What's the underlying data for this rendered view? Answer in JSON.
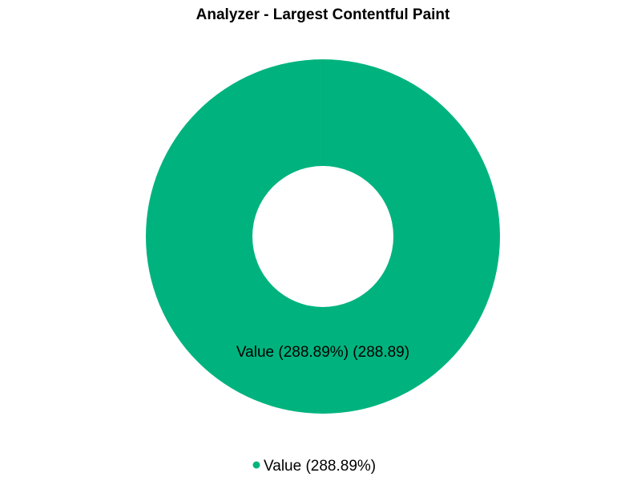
{
  "chart_data": {
    "type": "pie",
    "title": "Analyzer - Largest Contentful Paint",
    "slices": [
      {
        "name": "Value",
        "value": 288.89,
        "percent_label": "288.89%",
        "data_label": "Value (288.89%) (288.89)",
        "legend_label": "Value (288.89%)",
        "color": "#00b37e"
      }
    ],
    "donut": true,
    "legend_position": "bottom-center"
  }
}
